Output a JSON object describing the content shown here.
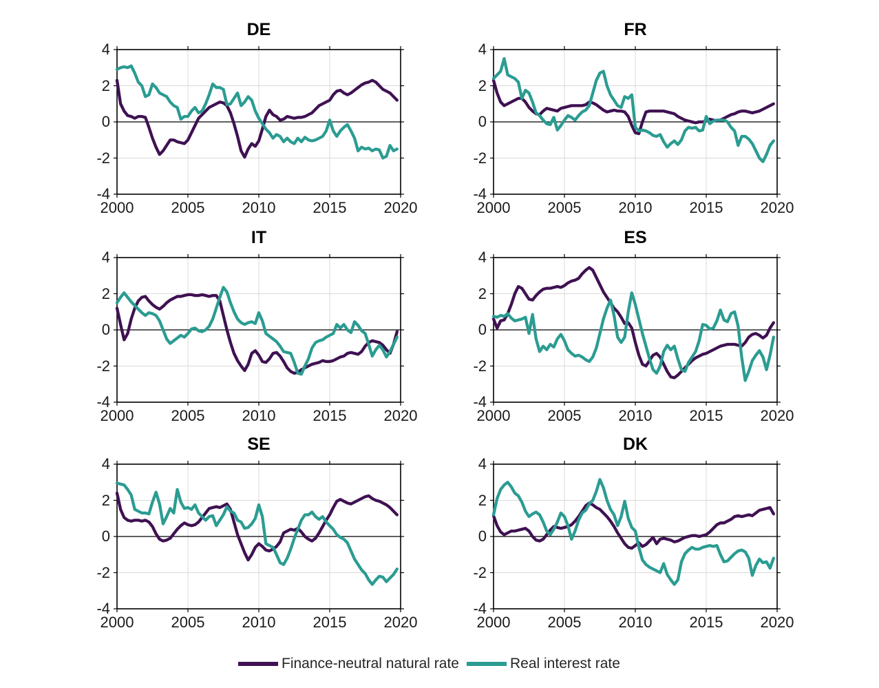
{
  "figure": {
    "background": "#ffffff",
    "grid_color": "#d9d9d9",
    "axis_color": "#000000",
    "zero_line_color": "#000000"
  },
  "legend": {
    "items": [
      {
        "label": "Finance-neutral natural rate",
        "color": "#3F1152"
      },
      {
        "label": "Real interest rate",
        "color": "#2B9C92"
      }
    ]
  },
  "axes": {
    "x_range": [
      2000,
      2020
    ],
    "y_range": [
      -4,
      4
    ],
    "x_ticks": [
      "2000",
      "2005",
      "2010",
      "2015",
      "2020"
    ],
    "y_ticks": [
      "4",
      "2",
      "0",
      "-2",
      "-4"
    ],
    "x_start": 2000,
    "x_step": 0.25,
    "grid": true,
    "zero_line": true
  },
  "chart_data": [
    {
      "type": "line",
      "title": "DE",
      "x_start": 2000,
      "x_step": 0.25,
      "series": [
        {
          "name": "Finance-neutral natural rate",
          "values": [
            2.3,
            1.0,
            0.6,
            0.35,
            0.3,
            0.2,
            0.3,
            0.3,
            0.25,
            -0.3,
            -0.9,
            -1.4,
            -1.8,
            -1.6,
            -1.3,
            -1.0,
            -1.0,
            -1.1,
            -1.15,
            -1.2,
            -1.0,
            -0.6,
            -0.2,
            0.2,
            0.4,
            0.6,
            0.8,
            0.9,
            1.0,
            1.1,
            1.05,
            0.9,
            0.5,
            -0.1,
            -0.8,
            -1.6,
            -1.95,
            -1.5,
            -1.2,
            -1.35,
            -1.05,
            -0.4,
            0.3,
            0.65,
            0.4,
            0.3,
            0.1,
            0.15,
            0.3,
            0.25,
            0.2,
            0.25,
            0.25,
            0.3,
            0.4,
            0.5,
            0.7,
            0.9,
            1.0,
            1.1,
            1.2,
            1.5,
            1.7,
            1.75,
            1.6,
            1.5,
            1.6,
            1.75,
            1.9,
            2.05,
            2.15,
            2.2,
            2.3,
            2.2,
            2.0,
            1.8,
            1.7,
            1.6,
            1.4,
            1.2
          ]
        },
        {
          "name": "Real interest rate",
          "values": [
            2.9,
            3.0,
            3.05,
            3.0,
            3.1,
            2.7,
            2.2,
            2.0,
            1.4,
            1.5,
            2.1,
            1.9,
            1.6,
            1.5,
            1.4,
            1.1,
            0.9,
            0.8,
            0.15,
            0.3,
            0.3,
            0.6,
            0.8,
            0.5,
            0.6,
            1.0,
            1.5,
            2.1,
            1.9,
            1.9,
            1.8,
            0.95,
            1.0,
            1.3,
            1.6,
            0.9,
            1.1,
            1.4,
            1.2,
            0.6,
            0.2,
            -0.1,
            -0.4,
            -0.6,
            -0.9,
            -0.7,
            -0.8,
            -1.1,
            -0.9,
            -1.1,
            -1.2,
            -0.9,
            -1.1,
            -0.85,
            -1.0,
            -1.05,
            -1.0,
            -0.9,
            -0.8,
            -0.5,
            0.1,
            -0.5,
            -0.8,
            -0.5,
            -0.3,
            -0.15,
            -0.5,
            -0.9,
            -1.6,
            -1.4,
            -1.5,
            -1.45,
            -1.6,
            -1.5,
            -1.55,
            -2.0,
            -1.9,
            -1.3,
            -1.6,
            -1.5
          ]
        }
      ]
    },
    {
      "type": "line",
      "title": "FR",
      "x_start": 2000,
      "x_step": 0.25,
      "series": [
        {
          "name": "Finance-neutral natural rate",
          "values": [
            2.3,
            1.6,
            1.1,
            0.9,
            1.0,
            1.1,
            1.2,
            1.3,
            1.3,
            1.1,
            0.8,
            0.6,
            0.45,
            0.4,
            0.6,
            0.75,
            0.7,
            0.65,
            0.6,
            0.75,
            0.8,
            0.85,
            0.9,
            0.9,
            0.9,
            0.9,
            0.95,
            1.1,
            1.05,
            0.95,
            0.8,
            0.65,
            0.55,
            0.6,
            0.65,
            0.6,
            0.6,
            0.55,
            0.3,
            -0.2,
            -0.6,
            -0.65,
            0.0,
            0.55,
            0.6,
            0.6,
            0.6,
            0.6,
            0.6,
            0.55,
            0.5,
            0.45,
            0.3,
            0.2,
            0.1,
            0.05,
            0.0,
            -0.05,
            0.0,
            0.0,
            0.05,
            0.15,
            0.1,
            0.05,
            0.1,
            0.2,
            0.3,
            0.4,
            0.45,
            0.55,
            0.6,
            0.6,
            0.55,
            0.5,
            0.55,
            0.6,
            0.7,
            0.8,
            0.9,
            1.0
          ]
        },
        {
          "name": "Real interest rate",
          "values": [
            2.4,
            2.6,
            2.8,
            3.5,
            2.6,
            2.5,
            2.4,
            2.2,
            1.3,
            1.75,
            1.6,
            1.1,
            0.5,
            0.35,
            0.1,
            -0.1,
            -0.15,
            0.25,
            -0.45,
            -0.2,
            0.1,
            0.35,
            0.25,
            0.1,
            0.35,
            0.55,
            0.65,
            0.9,
            1.6,
            2.3,
            2.7,
            2.8,
            2.0,
            1.5,
            1.2,
            0.9,
            0.8,
            1.4,
            1.3,
            1.5,
            -0.3,
            -0.5,
            -0.45,
            -0.5,
            -0.6,
            -0.75,
            -0.8,
            -0.7,
            -1.1,
            -1.4,
            -1.2,
            -1.05,
            -1.25,
            -1.0,
            -0.5,
            -0.3,
            -0.35,
            -0.3,
            -0.5,
            -0.45,
            0.3,
            -0.1,
            0.05,
            0.1,
            0.1,
            0.1,
            0.0,
            -0.3,
            -0.5,
            -1.3,
            -0.8,
            -0.8,
            -0.95,
            -1.2,
            -1.6,
            -2.0,
            -2.2,
            -1.8,
            -1.3,
            -1.05
          ]
        }
      ]
    },
    {
      "type": "line",
      "title": "IT",
      "x_start": 2000,
      "x_step": 0.25,
      "series": [
        {
          "name": "Finance-neutral natural rate",
          "values": [
            1.2,
            0.3,
            -0.55,
            -0.2,
            0.6,
            1.2,
            1.6,
            1.8,
            1.85,
            1.6,
            1.4,
            1.25,
            1.15,
            1.3,
            1.5,
            1.65,
            1.75,
            1.85,
            1.85,
            1.9,
            1.95,
            1.95,
            1.9,
            1.9,
            1.95,
            1.9,
            1.85,
            1.9,
            1.9,
            1.6,
            0.8,
            0.0,
            -0.7,
            -1.3,
            -1.7,
            -2.0,
            -2.25,
            -1.9,
            -1.3,
            -1.15,
            -1.4,
            -1.75,
            -1.8,
            -1.6,
            -1.3,
            -1.25,
            -1.45,
            -1.75,
            -2.1,
            -2.3,
            -2.4,
            -2.35,
            -2.2,
            -2.1,
            -2.0,
            -1.9,
            -1.85,
            -1.8,
            -1.7,
            -1.75,
            -1.75,
            -1.7,
            -1.6,
            -1.5,
            -1.45,
            -1.3,
            -1.25,
            -1.3,
            -1.35,
            -1.2,
            -0.9,
            -0.7,
            -0.6,
            -0.65,
            -0.7,
            -0.85,
            -1.1,
            -1.3,
            -0.8,
            -0.1
          ]
        },
        {
          "name": "Real interest rate",
          "values": [
            1.5,
            1.8,
            2.05,
            1.8,
            1.55,
            1.35,
            1.15,
            0.95,
            0.8,
            0.95,
            0.9,
            0.8,
            0.5,
            0.0,
            -0.5,
            -0.75,
            -0.6,
            -0.45,
            -0.3,
            -0.4,
            -0.2,
            0.05,
            0.1,
            -0.05,
            -0.1,
            0.0,
            0.2,
            0.6,
            1.2,
            1.8,
            2.35,
            2.1,
            1.5,
            1.0,
            0.6,
            0.4,
            0.3,
            0.4,
            0.45,
            0.35,
            0.95,
            0.5,
            -0.2,
            -0.35,
            -0.5,
            -0.65,
            -0.9,
            -1.2,
            -1.25,
            -1.3,
            -1.8,
            -2.4,
            -2.45,
            -2.0,
            -1.6,
            -1.0,
            -0.7,
            -0.6,
            -0.55,
            -0.4,
            -0.3,
            -0.2,
            0.3,
            0.1,
            0.3,
            0.0,
            -0.15,
            0.45,
            0.25,
            -0.05,
            -0.2,
            -0.8,
            -1.45,
            -1.1,
            -0.85,
            -1.1,
            -1.5,
            -1.2,
            -0.8,
            -0.4
          ]
        }
      ]
    },
    {
      "type": "line",
      "title": "ES",
      "x_start": 2000,
      "x_step": 0.25,
      "series": [
        {
          "name": "Finance-neutral natural rate",
          "values": [
            0.6,
            0.1,
            0.5,
            0.55,
            0.9,
            1.4,
            2.0,
            2.4,
            2.3,
            2.0,
            1.7,
            1.65,
            1.9,
            2.1,
            2.25,
            2.3,
            2.3,
            2.35,
            2.4,
            2.35,
            2.45,
            2.6,
            2.7,
            2.75,
            2.85,
            3.1,
            3.3,
            3.45,
            3.3,
            2.9,
            2.5,
            2.1,
            1.8,
            1.5,
            1.2,
            1.0,
            0.7,
            0.35,
            0.4,
            0.1,
            -0.7,
            -1.4,
            -1.9,
            -2.0,
            -1.7,
            -1.4,
            -1.3,
            -1.5,
            -1.9,
            -2.3,
            -2.6,
            -2.65,
            -2.5,
            -2.3,
            -2.1,
            -1.9,
            -1.7,
            -1.55,
            -1.45,
            -1.35,
            -1.3,
            -1.2,
            -1.1,
            -1.0,
            -0.9,
            -0.85,
            -0.8,
            -0.8,
            -0.8,
            -0.85,
            -0.9,
            -0.7,
            -0.4,
            -0.25,
            -0.2,
            -0.3,
            -0.45,
            -0.3,
            0.1,
            0.4
          ]
        },
        {
          "name": "Real interest rate",
          "values": [
            0.75,
            0.7,
            0.8,
            0.75,
            0.9,
            0.65,
            0.5,
            0.55,
            0.6,
            0.7,
            -0.2,
            0.85,
            -0.5,
            -1.2,
            -0.9,
            -1.1,
            -0.8,
            -0.95,
            -0.5,
            -0.25,
            -0.6,
            -1.1,
            -1.3,
            -1.45,
            -1.4,
            -1.5,
            -1.65,
            -1.75,
            -1.5,
            -1.0,
            -0.2,
            0.6,
            1.2,
            1.65,
            0.8,
            -0.4,
            -0.7,
            -0.4,
            1.0,
            2.05,
            1.4,
            0.6,
            -0.2,
            -0.9,
            -1.6,
            -2.2,
            -2.4,
            -2.0,
            -1.2,
            -0.85,
            -1.1,
            -0.9,
            -1.6,
            -2.2,
            -2.3,
            -1.8,
            -1.5,
            -1.2,
            -0.6,
            0.3,
            0.25,
            0.05,
            0.1,
            0.5,
            1.1,
            0.55,
            0.45,
            0.9,
            1.0,
            0.2,
            -1.5,
            -2.8,
            -2.3,
            -1.7,
            -1.4,
            -1.15,
            -1.5,
            -2.2,
            -1.4,
            -0.4
          ]
        }
      ]
    },
    {
      "type": "line",
      "title": "SE",
      "x_start": 2000,
      "x_step": 0.25,
      "series": [
        {
          "name": "Finance-neutral natural rate",
          "values": [
            2.4,
            1.5,
            1.05,
            0.9,
            0.85,
            0.9,
            0.9,
            0.85,
            0.9,
            0.8,
            0.55,
            0.15,
            -0.15,
            -0.25,
            -0.2,
            -0.1,
            0.15,
            0.4,
            0.6,
            0.75,
            0.65,
            0.6,
            0.65,
            0.8,
            1.05,
            1.3,
            1.55,
            1.6,
            1.65,
            1.6,
            1.7,
            1.8,
            1.5,
            0.8,
            0.1,
            -0.4,
            -0.9,
            -1.3,
            -1.0,
            -0.6,
            -0.4,
            -0.55,
            -0.75,
            -0.8,
            -0.7,
            -0.55,
            -0.3,
            0.2,
            0.3,
            0.4,
            0.35,
            0.45,
            0.25,
            0.0,
            -0.15,
            -0.25,
            -0.1,
            0.2,
            0.55,
            0.9,
            1.2,
            1.6,
            1.95,
            2.05,
            1.95,
            1.85,
            1.8,
            1.9,
            2.0,
            2.1,
            2.2,
            2.25,
            2.1,
            2.0,
            1.95,
            1.85,
            1.75,
            1.6,
            1.4,
            1.2
          ]
        },
        {
          "name": "Real interest rate",
          "values": [
            2.95,
            2.9,
            2.85,
            2.6,
            2.3,
            1.5,
            1.4,
            1.3,
            1.3,
            1.25,
            1.9,
            2.45,
            1.8,
            0.7,
            1.1,
            1.55,
            1.3,
            2.6,
            1.9,
            1.55,
            1.6,
            1.5,
            1.75,
            1.3,
            1.1,
            0.9,
            1.1,
            1.15,
            0.6,
            0.9,
            1.2,
            1.65,
            1.4,
            1.3,
            0.9,
            0.8,
            0.45,
            0.5,
            0.7,
            1.0,
            1.75,
            1.1,
            -0.4,
            -0.5,
            -0.6,
            -1.0,
            -1.45,
            -1.55,
            -1.2,
            -0.7,
            -0.1,
            0.4,
            0.9,
            1.2,
            1.2,
            1.35,
            1.1,
            0.95,
            1.1,
            0.8,
            0.6,
            0.4,
            0.1,
            -0.05,
            -0.15,
            -0.35,
            -0.8,
            -1.25,
            -1.55,
            -1.85,
            -2.05,
            -2.4,
            -2.65,
            -2.4,
            -2.2,
            -2.25,
            -2.5,
            -2.3,
            -2.1,
            -1.8
          ]
        }
      ]
    },
    {
      "type": "line",
      "title": "DK",
      "x_start": 2000,
      "x_step": 0.25,
      "series": [
        {
          "name": "Finance-neutral natural rate",
          "values": [
            1.15,
            0.6,
            0.25,
            0.1,
            0.2,
            0.3,
            0.3,
            0.35,
            0.4,
            0.45,
            0.3,
            0.0,
            -0.2,
            -0.25,
            -0.15,
            0.1,
            0.35,
            0.55,
            0.5,
            0.45,
            0.5,
            0.55,
            0.65,
            0.85,
            1.1,
            1.4,
            1.7,
            1.85,
            1.75,
            1.6,
            1.5,
            1.3,
            1.1,
            0.85,
            0.55,
            0.2,
            -0.1,
            -0.4,
            -0.6,
            -0.65,
            -0.5,
            -0.35,
            -0.55,
            -0.45,
            -0.25,
            -0.05,
            -0.4,
            -0.15,
            -0.1,
            -0.15,
            -0.2,
            -0.3,
            -0.25,
            -0.15,
            -0.05,
            0.0,
            0.05,
            0.05,
            0.0,
            0.05,
            0.1,
            0.25,
            0.45,
            0.65,
            0.75,
            0.75,
            0.85,
            0.95,
            1.1,
            1.15,
            1.1,
            1.15,
            1.2,
            1.15,
            1.3,
            1.45,
            1.5,
            1.55,
            1.6,
            1.25
          ]
        },
        {
          "name": "Real interest rate",
          "values": [
            1.2,
            2.1,
            2.6,
            2.85,
            3.0,
            2.75,
            2.4,
            2.25,
            1.9,
            1.4,
            1.1,
            1.25,
            1.35,
            1.2,
            0.8,
            0.3,
            0.1,
            0.4,
            0.8,
            1.3,
            1.1,
            0.6,
            -0.15,
            0.3,
            0.9,
            1.3,
            1.45,
            1.8,
            2.0,
            2.5,
            3.15,
            2.7,
            2.0,
            1.5,
            1.2,
            0.6,
            1.1,
            1.95,
            1.0,
            0.5,
            0.3,
            -0.6,
            -1.3,
            -1.55,
            -1.7,
            -1.8,
            -1.9,
            -2.0,
            -1.5,
            -2.1,
            -2.4,
            -2.65,
            -2.4,
            -1.4,
            -0.95,
            -0.75,
            -0.6,
            -0.7,
            -0.7,
            -0.6,
            -0.55,
            -0.5,
            -0.55,
            -0.5,
            -1.0,
            -1.4,
            -1.35,
            -1.15,
            -0.95,
            -0.8,
            -0.75,
            -0.85,
            -1.2,
            -2.15,
            -1.6,
            -1.25,
            -1.45,
            -1.4,
            -1.75,
            -1.2
          ]
        }
      ]
    }
  ]
}
